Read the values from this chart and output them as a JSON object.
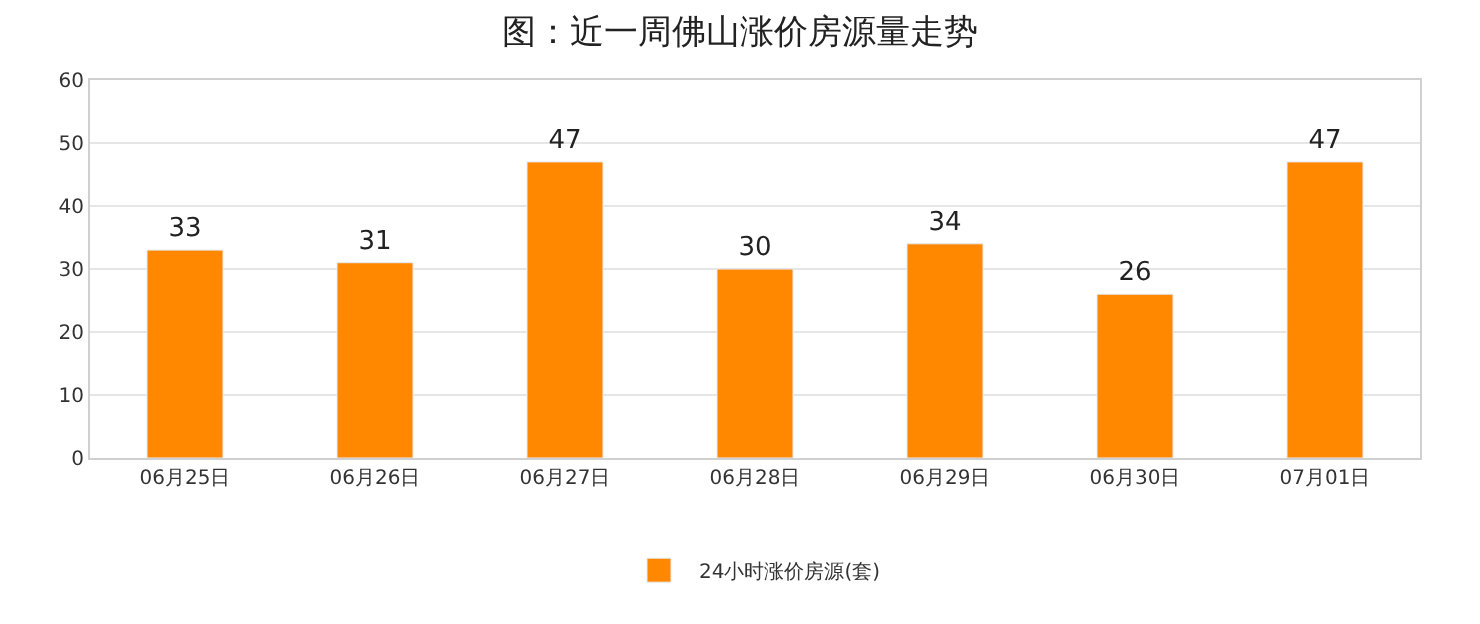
{
  "chart_data": {
    "type": "bar",
    "title": "图：近一周佛山涨价房源量走势",
    "categories": [
      "06月25日",
      "06月26日",
      "06月27日",
      "06月28日",
      "06月29日",
      "06月30日",
      "07月01日"
    ],
    "series": [
      {
        "name": "24小时涨价房源(套)",
        "color": "#ff8800",
        "values": [
          33,
          31,
          47,
          30,
          34,
          26,
          47
        ]
      }
    ],
    "ylim": [
      0,
      60
    ],
    "yticks": [
      0,
      10,
      20,
      30,
      40,
      50,
      60
    ],
    "grid": "y",
    "legend": "bottom",
    "data_labels": true
  }
}
